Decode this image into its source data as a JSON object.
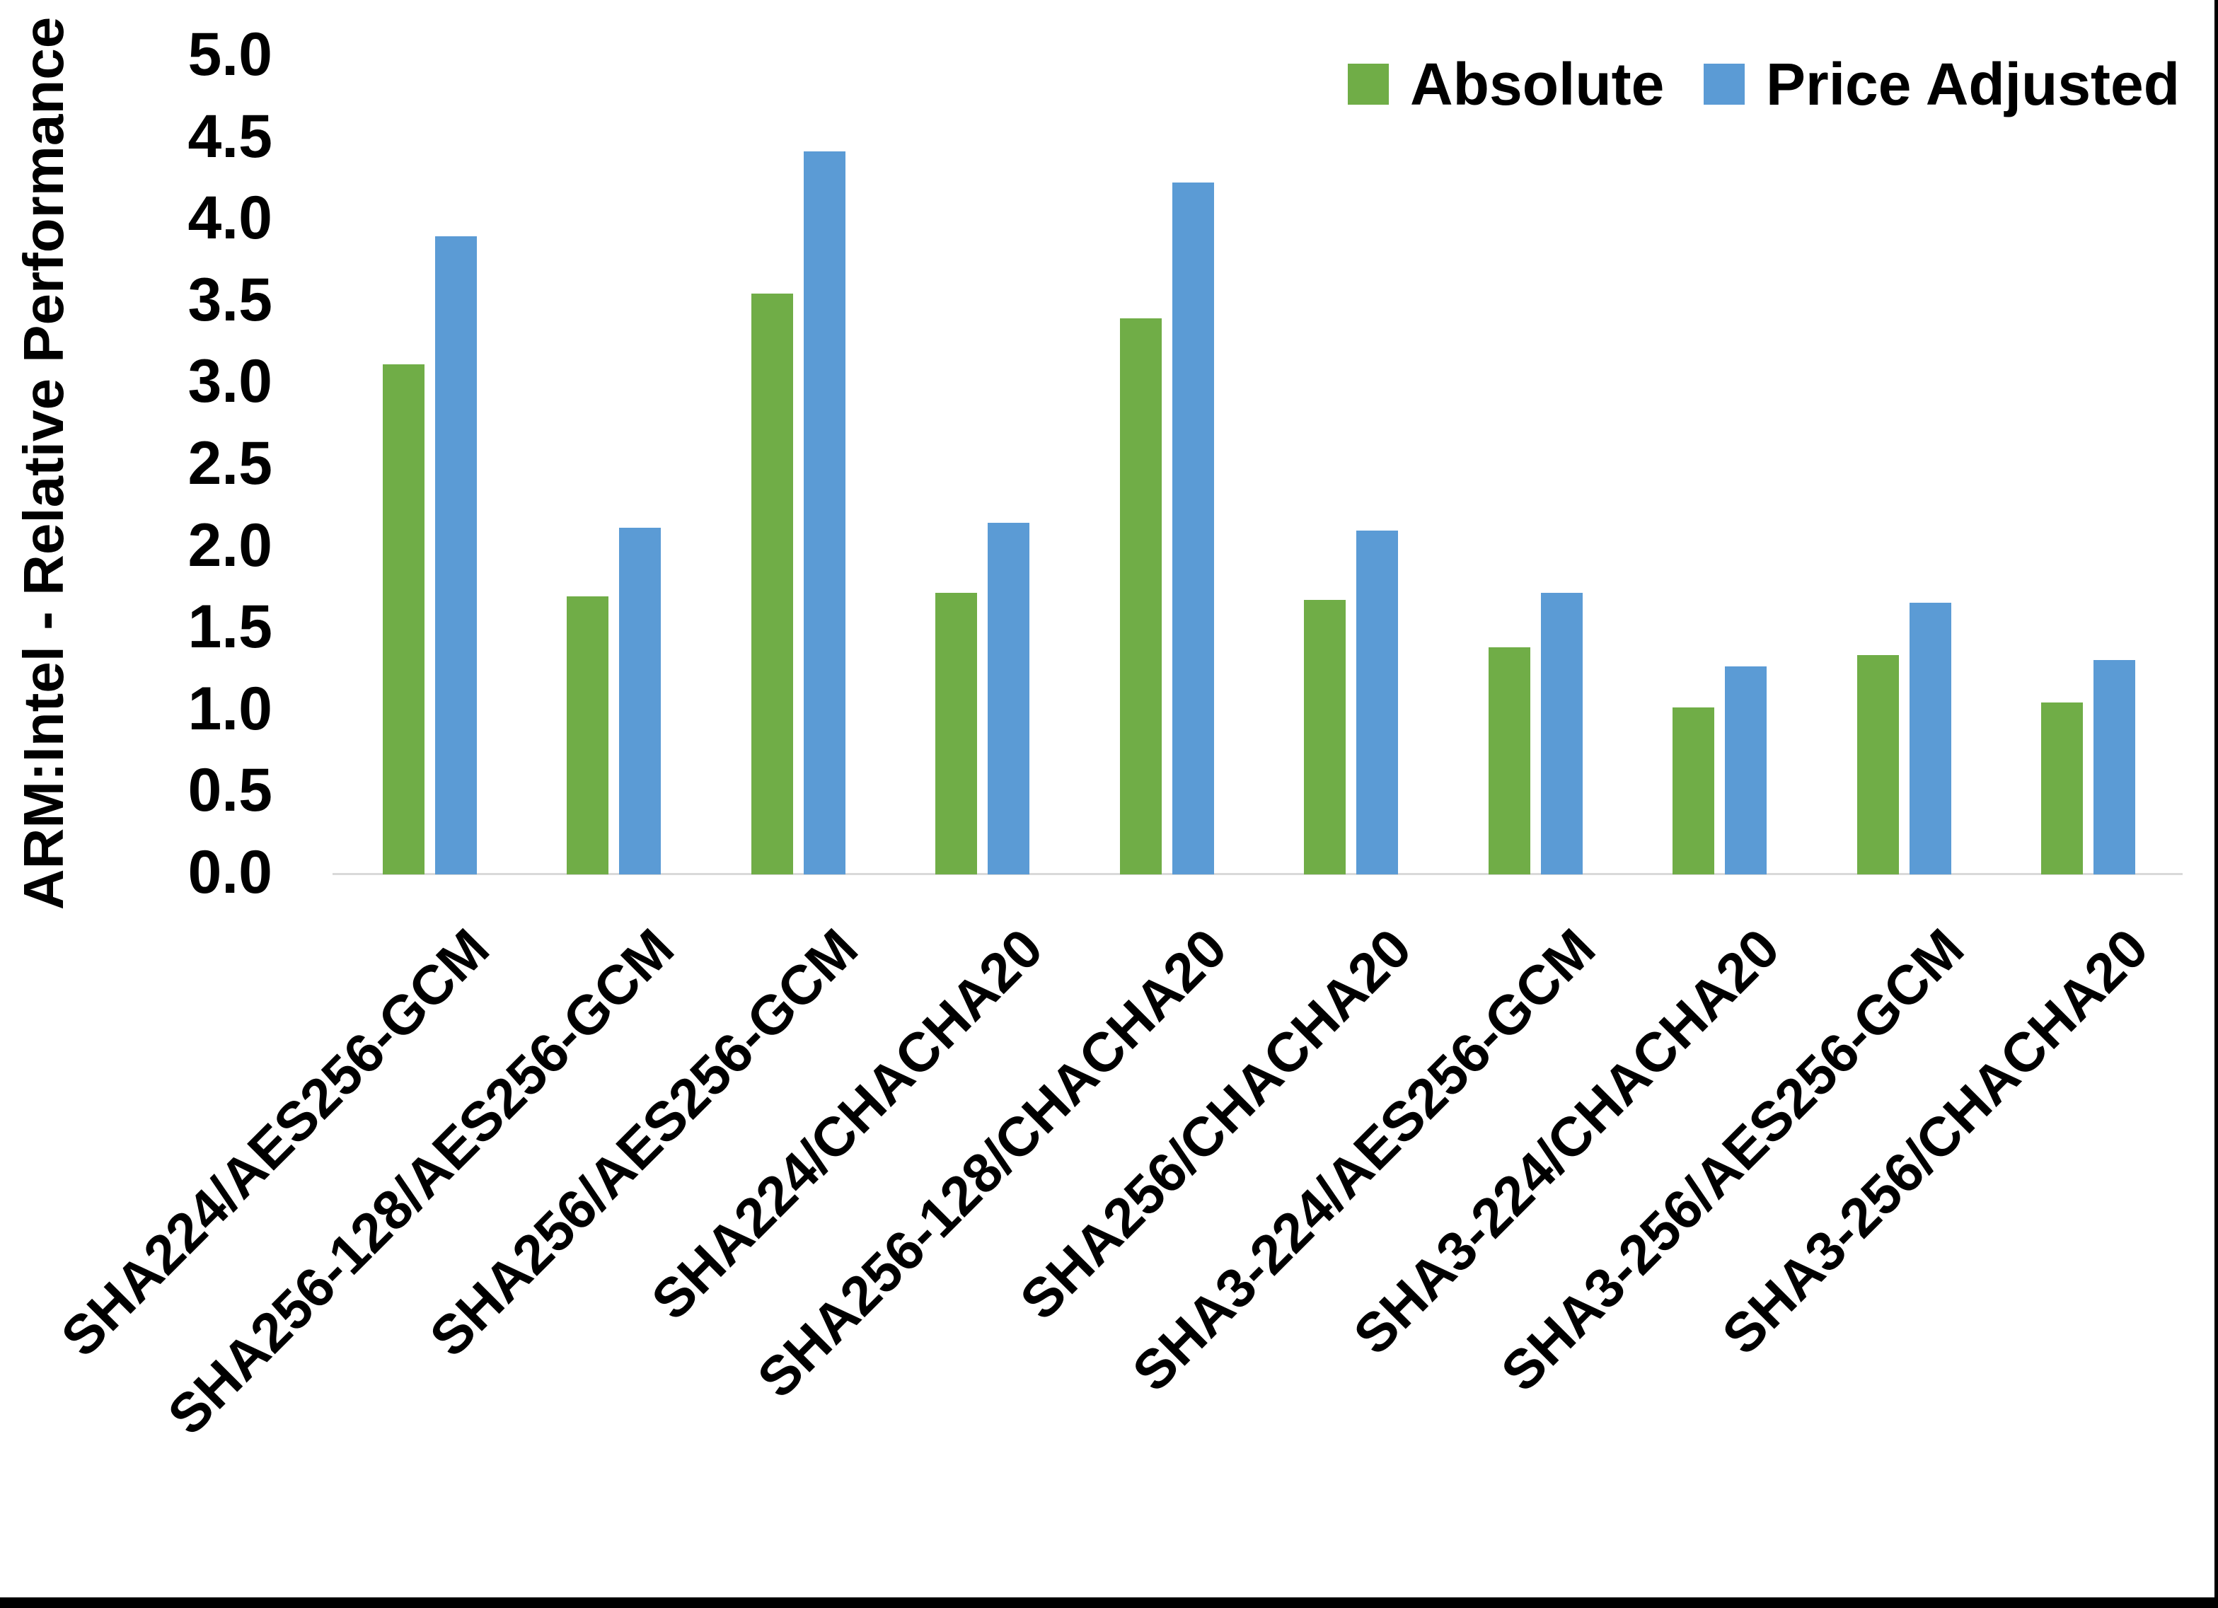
{
  "page": {
    "background_color": "#FFFFFF",
    "frame_border_color": "#000000"
  },
  "chart_data": {
    "type": "bar",
    "subtype": "grouped-vertical",
    "title": "",
    "xlabel": "",
    "ylabel": "ARM:Intel - Relative Performance",
    "ylim": [
      0.0,
      5.0
    ],
    "ytick_step": 0.5,
    "ytick_labels": [
      "0.0",
      "0.5",
      "1.0",
      "1.5",
      "2.0",
      "2.5",
      "3.0",
      "3.5",
      "4.0",
      "4.5",
      "5.0"
    ],
    "grid": false,
    "axis_line_color": "#D9D9D9",
    "legend_position": "top-right",
    "categories": [
      "SHA224/AES256-GCM",
      "SHA256-128/AES256-GCM",
      "SHA256/AES256-GCM",
      "SHA224/CHACHA20",
      "SHA256-128/CHACHA20",
      "SHA256/CHACHA20",
      "SHA3-224/AES256-GCM",
      "SHA3-224/CHACHA20",
      "SHA3-256/AES256-GCM",
      "SHA3-256/CHACHA20"
    ],
    "series": [
      {
        "name": "Absolute",
        "color": "#70AD47",
        "values": [
          3.12,
          1.7,
          3.55,
          1.72,
          3.4,
          1.68,
          1.39,
          1.02,
          1.34,
          1.05
        ]
      },
      {
        "name": "Price Adjusted",
        "color": "#5B9BD5",
        "values": [
          3.9,
          2.12,
          4.42,
          2.15,
          4.23,
          2.1,
          1.72,
          1.27,
          1.66,
          1.31
        ]
      }
    ]
  }
}
